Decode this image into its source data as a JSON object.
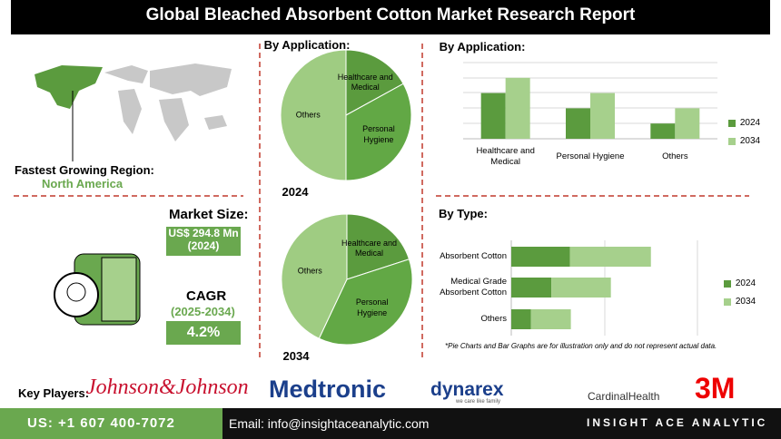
{
  "header": {
    "title": "Global Bleached Absorbent Cotton Market Research Report"
  },
  "region": {
    "label": "Fastest Growing Region:",
    "value": "North America"
  },
  "market": {
    "size_label": "Market Size:",
    "size_value": "US$ 294.8 Mn (2024)",
    "cagr_label": "CAGR",
    "cagr_period": "(2025-2034)",
    "cagr_value": "4.2%"
  },
  "chart_data": [
    {
      "type": "pie",
      "title": "By Application:",
      "year": "2024",
      "categories": [
        "Healthcare and Medical",
        "Personal Hygiene",
        "Others"
      ],
      "values": [
        17,
        33,
        50
      ],
      "colors": [
        "#5b9b3e",
        "#62a845",
        "#9fcc82"
      ]
    },
    {
      "type": "pie",
      "year": "2034",
      "categories": [
        "Healthcare and Medical",
        "Personal Hygiene",
        "Others"
      ],
      "values": [
        20,
        37,
        43
      ],
      "colors": [
        "#5b9b3e",
        "#62a845",
        "#9fcc82"
      ]
    },
    {
      "type": "bar",
      "title": "By Application:",
      "categories": [
        "Healthcare and Medical",
        "Personal Hygiene",
        "Others"
      ],
      "ylim": [
        0,
        5
      ],
      "legend": "right",
      "series": [
        {
          "name": "2024",
          "color": "#5b9b3e",
          "values": [
            3,
            2,
            1
          ]
        },
        {
          "name": "2034",
          "color": "#a6d08c",
          "values": [
            4,
            3,
            2
          ]
        }
      ]
    },
    {
      "type": "hbar",
      "title": "By Type:",
      "categories": [
        "Absorbent Cotton",
        "Medical Grade Absorbent Cotton",
        "Others"
      ],
      "xlim": [
        0,
        200
      ],
      "stacked": true,
      "legend": "right",
      "series": [
        {
          "name": "2024",
          "color": "#5b9b3e",
          "values": [
            63,
            43,
            21
          ]
        },
        {
          "name": "2034",
          "color": "#a6d08c",
          "values": [
            87,
            64,
            43
          ]
        }
      ]
    }
  ],
  "note": "*Pie Charts and Bar Graphs are for illustration only and do not represent actual data.",
  "key_players": {
    "label": "Key Players:",
    "names": [
      "Johnson&Johnson",
      "Medtronic",
      "dynarex",
      "CardinalHealth",
      "3M"
    ],
    "dynarex_tagline": "we care like family"
  },
  "footer": {
    "phone": "US: +1 607 400-7072",
    "email": "Email: info@insightaceanalytic.com",
    "brand": "INSIGHT ACE ANALYTIC"
  }
}
